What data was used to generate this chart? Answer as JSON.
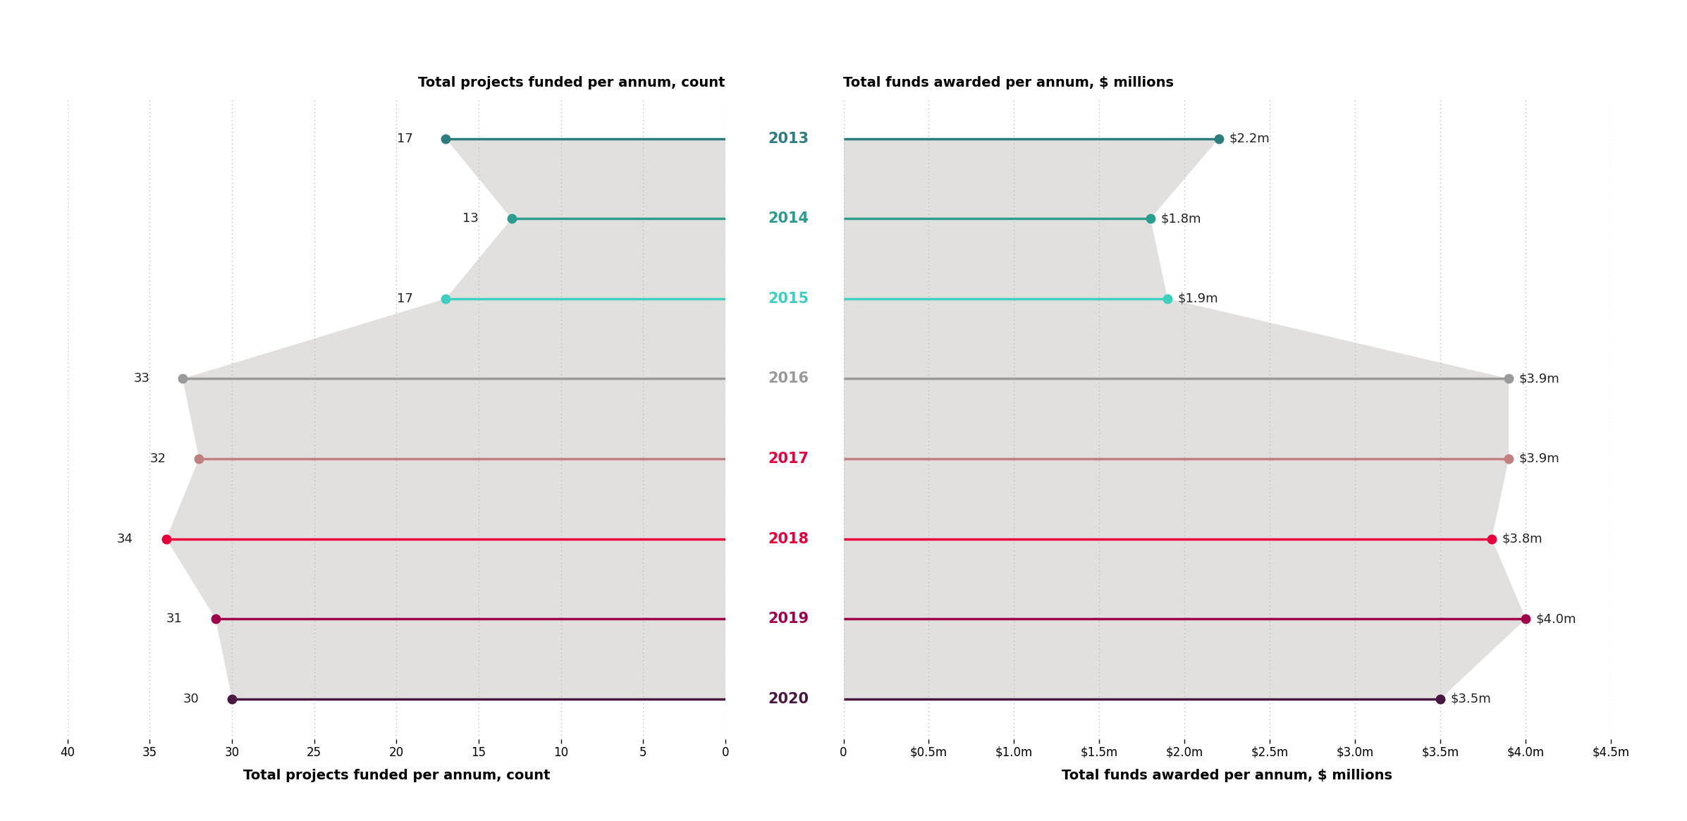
{
  "years": [
    "2013",
    "2014",
    "2015",
    "2016",
    "2017",
    "2018",
    "2019",
    "2020"
  ],
  "left_values": [
    17,
    13,
    17,
    33,
    32,
    34,
    31,
    30
  ],
  "right_values": [
    2.2,
    1.8,
    1.9,
    3.9,
    3.9,
    3.8,
    4.0,
    3.5
  ],
  "right_labels": [
    "$2.2m",
    "$1.8m",
    "$1.9m",
    "$3.9m",
    "$3.9m",
    "$3.8m",
    "$4.0m",
    "$3.5m"
  ],
  "line_colors": [
    "#2e7d7e",
    "#2a9d8f",
    "#3dcfbf",
    "#9a9a9a",
    "#c08080",
    "#e8003d",
    "#a0004a",
    "#4a1942"
  ],
  "year_colors": [
    "#2e7d7e",
    "#2a9d8f",
    "#3dcfbf",
    "#9a9a9a",
    "#e8003d",
    "#e8003d",
    "#a0004a",
    "#4a1942"
  ],
  "left_axis_ticks": [
    40,
    35,
    30,
    25,
    20,
    15,
    10,
    5,
    0
  ],
  "right_axis_ticks": [
    0,
    0.5,
    1.0,
    1.5,
    2.0,
    2.5,
    3.0,
    3.5,
    4.0,
    4.5
  ],
  "right_axis_tick_labels": [
    "0",
    "$0.5m",
    "$1.0m",
    "$1.5m",
    "$2.0m",
    "$2.5m",
    "$3.0m",
    "$3.5m",
    "$4.0m",
    "$4.5m"
  ],
  "left_title": "Total projects funded per annum, count",
  "right_title": "Total funds awarded per annum, $ millions",
  "background_color": "#ffffff",
  "shade_color": "#e2e0df",
  "figsize": [
    23.93,
    11.65
  ],
  "dpi": 100
}
